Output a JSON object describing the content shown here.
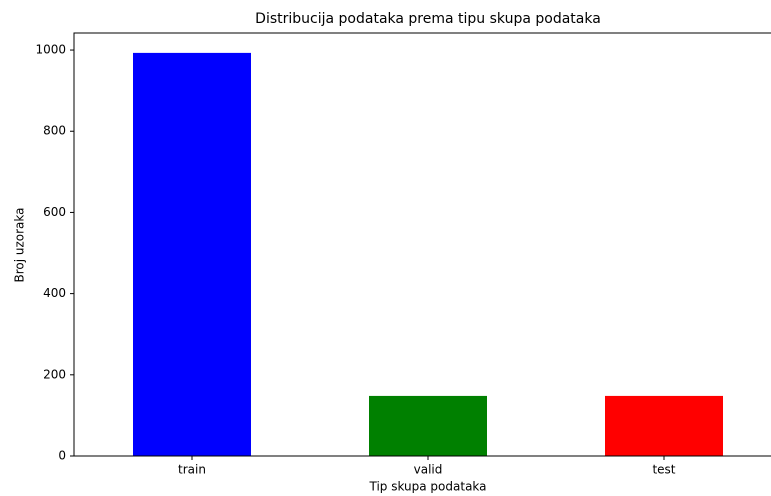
{
  "chart_data": {
    "type": "bar",
    "title": "Distribucija podataka prema tipu skupa podataka",
    "xlabel": "Tip skupa podataka",
    "ylabel": "Broj uzoraka",
    "categories": [
      "train",
      "valid",
      "test"
    ],
    "values": [
      993,
      148,
      148
    ],
    "colors": [
      "#0000ff",
      "#008000",
      "#ff0000"
    ],
    "ylim": [
      0,
      1042
    ],
    "yticks": [
      0,
      200,
      400,
      600,
      800,
      1000
    ],
    "grid": false
  }
}
